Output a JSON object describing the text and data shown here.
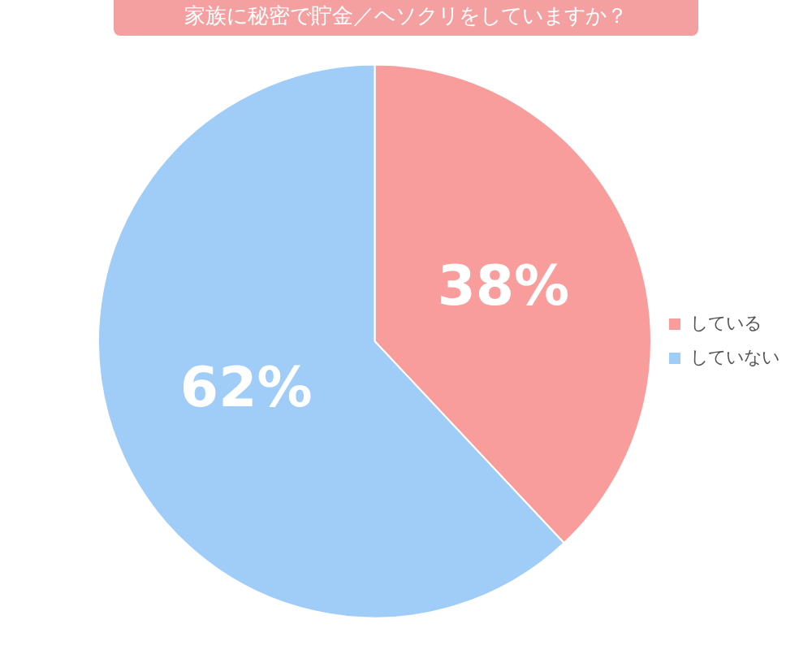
{
  "chart_data": {
    "type": "pie",
    "title": "家族に秘密で貯金／ヘソクリをしていますか？",
    "categories": [
      "している",
      "していない"
    ],
    "values": [
      38,
      62
    ],
    "colors": [
      "#f99c9c",
      "#9fcdf8"
    ],
    "value_labels": [
      "38%",
      "62%"
    ],
    "legend": "right"
  }
}
